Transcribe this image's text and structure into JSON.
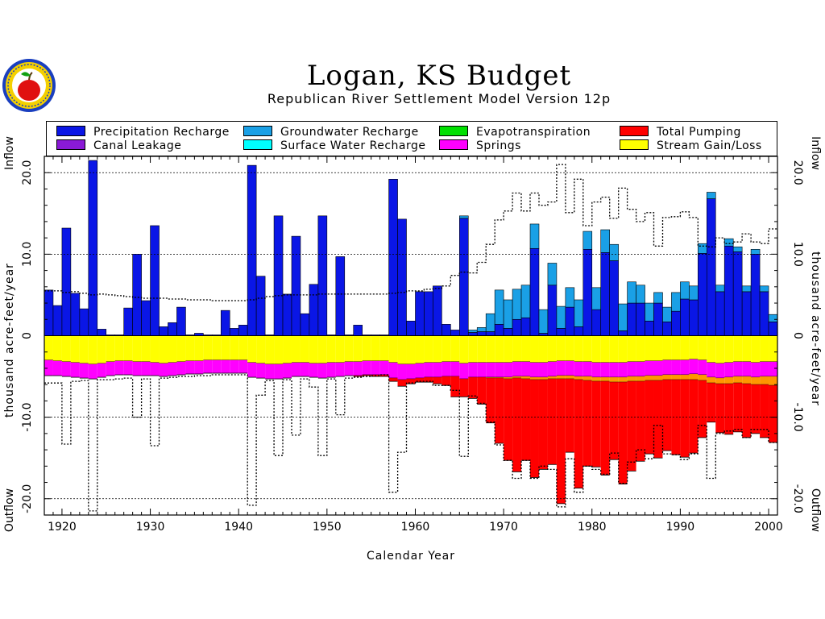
{
  "title": "Logan, KS Budget",
  "subtitle": "Republican River Settlement Model Version 12p",
  "logo_icon": "kansas-seal-apple-icon",
  "legend": [
    {
      "label": "Precipitation Recharge",
      "color": "#0a16e6"
    },
    {
      "label": "Groundwater Recharge",
      "color": "#1aa0e6"
    },
    {
      "label": "Evapotranspiration",
      "color": "#00e000"
    },
    {
      "label": "Total Pumping",
      "color": "#ff0000"
    },
    {
      "label": "Canal Leakage",
      "color": "#8a1ad6"
    },
    {
      "label": "Surface Water Recharge",
      "color": "#00ffff"
    },
    {
      "label": "Springs",
      "color": "#ff00ff"
    },
    {
      "label": "Stream Gain/Loss",
      "color": "#ffff00"
    }
  ],
  "axis": {
    "xlabel": "Calendar Year",
    "left_top": "Inflow",
    "left_mid": "thousand acre-feet/year",
    "left_bot": "Outflow",
    "right_top": "Inflow",
    "right_mid": "thousand acre-feet/year",
    "right_bot": "Outflow",
    "x_ticks": [
      "1920",
      "1930",
      "1940",
      "1950",
      "1960",
      "1970",
      "1980",
      "1990",
      "2000"
    ],
    "y_ticks": [
      "20.0",
      "10.0",
      "0",
      "-10.0",
      "-20.0"
    ]
  },
  "chart_data": {
    "type": "bar",
    "stacked": true,
    "xlim": [
      1918,
      2001
    ],
    "ylim": [
      -22,
      22
    ],
    "grid": "horizontal dashed at ±10, ±20",
    "years": [
      1918,
      1919,
      1920,
      1921,
      1922,
      1923,
      1924,
      1925,
      1926,
      1927,
      1928,
      1929,
      1930,
      1931,
      1932,
      1933,
      1934,
      1935,
      1936,
      1937,
      1938,
      1939,
      1940,
      1941,
      1942,
      1943,
      1944,
      1945,
      1946,
      1947,
      1948,
      1949,
      1950,
      1951,
      1952,
      1953,
      1954,
      1955,
      1956,
      1957,
      1958,
      1959,
      1960,
      1961,
      1962,
      1963,
      1964,
      1965,
      1966,
      1967,
      1968,
      1969,
      1970,
      1971,
      1972,
      1973,
      1974,
      1975,
      1976,
      1977,
      1978,
      1979,
      1980,
      1981,
      1982,
      1983,
      1984,
      1985,
      1986,
      1987,
      1988,
      1989,
      1990,
      1991,
      1992,
      1993,
      1994,
      1995,
      1996,
      1997,
      1998,
      1999,
      2000
    ],
    "series": [
      {
        "name": "Precipitation Recharge",
        "color": "#0a16e6",
        "values": [
          5.6,
          3.7,
          13.2,
          5.2,
          3.3,
          21.5,
          0.8,
          0.1,
          0.1,
          3.4,
          10.0,
          4.3,
          13.5,
          1.1,
          1.6,
          3.5,
          0.1,
          0.3,
          0.1,
          0.1,
          3.1,
          0.9,
          1.3,
          20.9,
          7.3,
          0.1,
          14.7,
          5.1,
          12.2,
          2.7,
          6.3,
          14.7,
          0.1,
          9.7,
          0.1,
          1.3,
          0.1,
          0.1,
          0.1,
          19.2,
          14.3,
          1.8,
          5.4,
          5.4,
          6.1,
          1.4,
          0.7,
          14.4,
          0.4,
          0.5,
          0.5,
          1.4,
          0.9,
          2.0,
          2.2,
          10.7,
          0.3,
          6.2,
          0.9,
          3.5,
          1.1,
          10.6,
          3.2,
          10.2,
          9.2,
          0.6,
          4.0,
          4.0,
          1.8,
          4.0,
          1.7,
          3.0,
          4.5,
          4.4,
          10.1,
          16.8,
          5.4,
          11.0,
          10.3,
          5.4,
          10.0,
          5.4,
          1.7
        ]
      },
      {
        "name": "Groundwater Recharge",
        "color": "#1aa0e6",
        "values": [
          0,
          0,
          0,
          0,
          0,
          0,
          0,
          0,
          0,
          0,
          0,
          0,
          0,
          0,
          0,
          0,
          0,
          0,
          0,
          0,
          0,
          0,
          0,
          0,
          0,
          0,
          0,
          0,
          0,
          0,
          0,
          0,
          0,
          0,
          0,
          0,
          0,
          0,
          0,
          0,
          0,
          0,
          0,
          0,
          0,
          0,
          0,
          0.3,
          0.3,
          0.5,
          2.2,
          4.2,
          3.5,
          3.7,
          4.0,
          3.0,
          2.9,
          2.7,
          2.7,
          2.4,
          3.3,
          2.2,
          2.7,
          2.8,
          2.0,
          3.3,
          2.6,
          2.2,
          2.2,
          1.3,
          1.8,
          2.3,
          2.1,
          1.7,
          1.2,
          0.8,
          0.8,
          0.9,
          0.6,
          0.7,
          0.6,
          0.7,
          0.9
        ]
      },
      {
        "name": "Springs",
        "color": "#ff00ff",
        "values": [
          -1.9,
          -1.8,
          -1.8,
          -1.8,
          -1.8,
          -1.8,
          -1.7,
          -1.7,
          -1.7,
          -1.7,
          -1.7,
          -1.7,
          -1.6,
          -1.6,
          -1.6,
          -1.6,
          -1.6,
          -1.6,
          -1.6,
          -1.6,
          -1.6,
          -1.6,
          -1.6,
          -1.8,
          -1.8,
          -1.8,
          -1.8,
          -1.8,
          -1.7,
          -1.7,
          -1.7,
          -1.8,
          -1.8,
          -1.7,
          -1.7,
          -1.7,
          -1.7,
          -1.7,
          -1.7,
          -1.9,
          -1.9,
          -1.8,
          -1.8,
          -1.8,
          -1.8,
          -1.8,
          -1.8,
          -1.9,
          -1.8,
          -1.8,
          -1.8,
          -1.8,
          -1.8,
          -1.8,
          -1.8,
          -1.8,
          -1.8,
          -1.8,
          -1.8,
          -1.8,
          -1.8,
          -1.8,
          -1.8,
          -1.8,
          -1.8,
          -1.8,
          -1.8,
          -1.8,
          -1.8,
          -1.8,
          -1.8,
          -1.8,
          -1.8,
          -1.8,
          -1.8,
          -1.8,
          -1.8,
          -1.8,
          -1.8,
          -1.8,
          -1.8,
          -1.8,
          -1.8
        ]
      },
      {
        "name": "Stream Gain/Loss",
        "color": "#ffff00",
        "values": [
          -3.0,
          -3.1,
          -3.2,
          -3.3,
          -3.4,
          -3.5,
          -3.4,
          -3.2,
          -3.1,
          -3.1,
          -3.2,
          -3.2,
          -3.3,
          -3.4,
          -3.3,
          -3.2,
          -3.1,
          -3.1,
          -3.0,
          -3.0,
          -3.0,
          -3.0,
          -3.0,
          -3.3,
          -3.4,
          -3.5,
          -3.5,
          -3.4,
          -3.3,
          -3.3,
          -3.4,
          -3.4,
          -3.3,
          -3.3,
          -3.2,
          -3.2,
          -3.1,
          -3.1,
          -3.1,
          -3.3,
          -3.5,
          -3.5,
          -3.4,
          -3.3,
          -3.3,
          -3.2,
          -3.2,
          -3.4,
          -3.3,
          -3.3,
          -3.3,
          -3.3,
          -3.3,
          -3.2,
          -3.2,
          -3.3,
          -3.3,
          -3.2,
          -3.1,
          -3.1,
          -3.2,
          -3.2,
          -3.3,
          -3.3,
          -3.3,
          -3.3,
          -3.2,
          -3.2,
          -3.1,
          -3.1,
          -3.0,
          -3.0,
          -3.0,
          -2.9,
          -3.0,
          -3.3,
          -3.4,
          -3.3,
          -3.2,
          -3.2,
          -3.3,
          -3.2,
          -3.2
        ]
      },
      {
        "name": "Total Pumping",
        "color": "#ff0000",
        "values": [
          0,
          0,
          0,
          0,
          0,
          0,
          0,
          0,
          0,
          0,
          0,
          0,
          0,
          0,
          0,
          0,
          0,
          0,
          0,
          0,
          0,
          0,
          0,
          0,
          0,
          0,
          0,
          0,
          0,
          0,
          0,
          0,
          0,
          0,
          0,
          -0.1,
          -0.1,
          -0.2,
          -0.2,
          -0.4,
          -0.8,
          -0.6,
          -0.5,
          -0.6,
          -0.8,
          -1.1,
          -2.5,
          -2.2,
          -2.6,
          -3.3,
          -5.5,
          -8.0,
          -10.0,
          -11.5,
          -10.0,
          -12.0,
          -11.0,
          -10.5,
          -15.3,
          -9.0,
          -13.3,
          -10.5,
          -10.5,
          -11.5,
          -9.5,
          -12.5,
          -11.0,
          -9.8,
          -9.0,
          -9.5,
          -8.7,
          -9.2,
          -9.5,
          -9.0,
          -7.0,
          -4.8,
          -6.0,
          -6.2,
          -6.0,
          -6.6,
          -6.0,
          -6.5,
          -7.0
        ]
      },
      {
        "name": "Evapotranspiration",
        "color": "#00e000",
        "values": []
      },
      {
        "name": "Canal Leakage",
        "color": "#8a1ad6",
        "values": []
      },
      {
        "name": "Surface Water Recharge",
        "color": "#00ffff",
        "values": []
      }
    ],
    "other_outflow": {
      "color": "#ff9600",
      "values": [
        0,
        0,
        0,
        0,
        0,
        0,
        0,
        0,
        0,
        0,
        0,
        0,
        0,
        0,
        0,
        0,
        0,
        0,
        0,
        0,
        0,
        0,
        0,
        0,
        0,
        0,
        0,
        0,
        0,
        0,
        0,
        0,
        0,
        0,
        0,
        0,
        0,
        0,
        0,
        0,
        0,
        0,
        0,
        0,
        0,
        0,
        0,
        0,
        0,
        0,
        -0.1,
        -0.1,
        -0.2,
        -0.2,
        -0.3,
        -0.3,
        -0.3,
        -0.3,
        -0.4,
        -0.4,
        -0.4,
        -0.5,
        -0.5,
        -0.5,
        -0.6,
        -0.6,
        -0.6,
        -0.6,
        -0.6,
        -0.6,
        -0.6,
        -0.6,
        -0.6,
        -0.7,
        -0.7,
        -0.7,
        -0.7,
        -0.8,
        -0.8,
        -0.9,
        -0.9,
        -1.0,
        -1.1
      ]
    },
    "total_inflow_line": [
      5.5,
      5.5,
      5.3,
      5.4,
      5.2,
      5.0,
      5.1,
      5.0,
      4.9,
      4.8,
      4.7,
      4.6,
      4.6,
      4.6,
      4.5,
      4.5,
      4.4,
      4.4,
      4.4,
      4.3,
      4.3,
      4.3,
      4.3,
      4.4,
      4.6,
      4.8,
      4.9,
      5.0,
      5.0,
      5.0,
      5.0,
      5.1,
      5.1,
      5.1,
      5.1,
      5.1,
      5.1,
      5.1,
      5.1,
      5.2,
      5.3,
      5.5,
      5.5,
      5.7,
      5.8,
      6.1,
      7.4,
      7.8,
      7.7,
      9.0,
      11.2,
      14.2,
      15.3,
      17.5,
      15.3,
      17.5,
      16.0,
      16.4,
      21.0,
      15.1,
      19.2,
      13.5,
      16.4,
      17.0,
      14.4,
      18.1,
      15.5,
      14.0,
      15.1,
      11.0,
      14.5,
      14.6,
      15.2,
      14.5,
      11.0,
      10.9,
      12.0,
      11.3,
      11.5,
      12.5,
      11.5,
      11.3,
      13.1
    ],
    "total_outflow_line": [
      -5.8,
      -5.8,
      -13.3,
      -5.6,
      -5.5,
      -21.5,
      -5.4,
      -5.4,
      -5.3,
      -5.2,
      -10.0,
      -5.3,
      -13.5,
      -5.2,
      -5.1,
      -5.0,
      -5.0,
      -4.9,
      -4.9,
      -4.8,
      -4.8,
      -4.8,
      -4.8,
      -20.8,
      -7.3,
      -5.5,
      -14.7,
      -5.4,
      -12.2,
      -5.3,
      -6.3,
      -14.7,
      -5.3,
      -9.7,
      -5.2,
      -5.1,
      -5.0,
      -4.9,
      -4.8,
      -19.2,
      -14.3,
      -5.8,
      -5.6,
      -5.6,
      -6.1,
      -6.1,
      -6.7,
      -14.8,
      -7.4,
      -8.3,
      -10.6,
      -13.4,
      -15.3,
      -17.5,
      -15.3,
      -17.5,
      -16.0,
      -16.4,
      -21.0,
      -15.1,
      -19.2,
      -16.0,
      -16.4,
      -17.0,
      -14.4,
      -18.1,
      -15.5,
      -14.0,
      -15.1,
      -11.0,
      -14.5,
      -14.6,
      -15.2,
      -14.5,
      -11.0,
      -17.5,
      -12.0,
      -11.7,
      -11.5,
      -12.5,
      -11.5,
      -11.5,
      -13.1
    ]
  }
}
